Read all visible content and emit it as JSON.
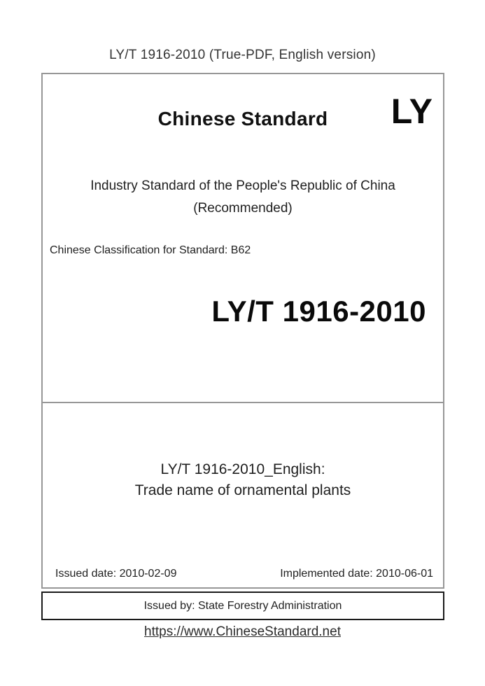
{
  "header": {
    "title": "LY/T 1916-2010 (True-PDF, English version)"
  },
  "cover": {
    "brand": "Chinese Standard",
    "logo": "LY",
    "org_line": "Industry Standard of the People's Republic of China",
    "recommended": "(Recommended)",
    "classification": "Chinese Classification for Standard: B62",
    "standard_number": "LY/T 1916-2010",
    "doc_title_line1": "LY/T 1916-2010_English:",
    "doc_title_line2": "Trade name of ornamental plants",
    "issued_date": "Issued date: 2010-02-09",
    "implemented_date": "Implemented date: 2010-06-01"
  },
  "issuer": {
    "text": "Issued by: State Forestry Administration"
  },
  "footer": {
    "url": "https://www.ChineseStandard.net"
  },
  "colors": {
    "box_border_gray": "#979797",
    "issuer_border_black": "#1a1a1a",
    "text": "#1f1f1f",
    "background": "#ffffff"
  }
}
